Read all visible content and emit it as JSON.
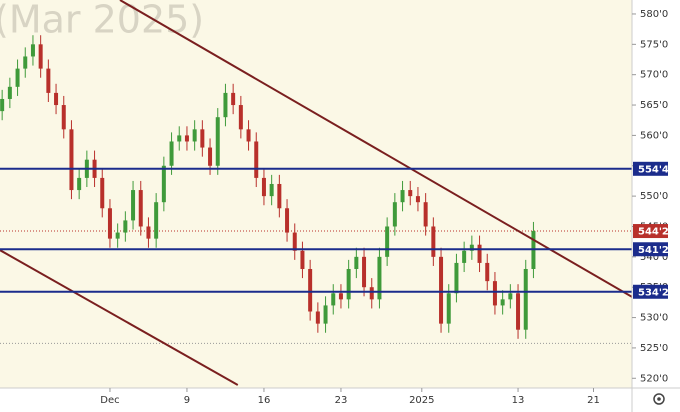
{
  "chart_data": {
    "type": "candlestick",
    "watermark": "(Mar 2025)",
    "background": "#fbf8e6",
    "up_color": "#3f9a3a",
    "down_color": "#b8302b",
    "level_color": "#1b2c8c",
    "trend_color": "#7a1f1f",
    "x": [
      -7,
      -6.5,
      -6,
      -5.5,
      -5,
      -4.5,
      -4,
      -3.5,
      -3,
      -2.5,
      -2,
      -1.5,
      -1,
      -0.5,
      0,
      0.5,
      1,
      1.5,
      2,
      2.5,
      3,
      3.5,
      4,
      4.5,
      5,
      5.5,
      6,
      6.5,
      7,
      7.5,
      8,
      8.5,
      9,
      9.5,
      10,
      10.5,
      11,
      11.5,
      12,
      12.5,
      13,
      13.5,
      14,
      14.5,
      15,
      15.5,
      16,
      16.5,
      17,
      17.5,
      18,
      18.5,
      19,
      19.5,
      20,
      20.5,
      21,
      21.5,
      22,
      22.5,
      23,
      23.5,
      24,
      24.5,
      25,
      25.5,
      26,
      26.5,
      27,
      27.5
    ],
    "open": [
      564,
      566,
      568,
      571,
      573,
      575,
      571,
      567,
      565,
      561,
      551,
      553,
      556,
      553,
      548,
      543,
      544,
      546,
      551,
      545,
      543,
      549,
      555,
      559,
      560,
      559,
      561,
      558,
      555,
      563,
      567,
      565,
      561,
      559,
      553,
      550,
      552,
      548,
      544,
      541,
      538,
      531,
      529,
      532,
      534,
      533,
      538,
      540,
      535,
      533,
      540,
      545,
      549,
      551,
      550,
      549,
      545,
      540,
      529,
      534,
      539,
      541,
      542,
      539,
      536,
      532,
      533,
      534,
      528,
      538
    ],
    "high": [
      567.5,
      569.5,
      572.5,
      574.5,
      576.5,
      576.5,
      572.5,
      568.5,
      566.5,
      562.5,
      554.5,
      557.5,
      557.5,
      554.5,
      549.5,
      545.5,
      547.5,
      552.5,
      552.5,
      546.5,
      550.5,
      556.5,
      560.5,
      561.5,
      561.5,
      562.5,
      562.5,
      559.5,
      564.5,
      568.5,
      568.5,
      566.5,
      562.5,
      560.5,
      554.5,
      553.5,
      553.5,
      549.5,
      545.5,
      542.5,
      539.5,
      532.5,
      533.5,
      535.5,
      535.5,
      539.5,
      541.5,
      541.5,
      536.5,
      541.5,
      546.5,
      550.5,
      552.5,
      552.5,
      551.5,
      550.5,
      546.5,
      541.5,
      535.5,
      540.5,
      542.5,
      543.5,
      543.5,
      540.5,
      537.5,
      534.5,
      535.5,
      535.5,
      539.5,
      545.75
    ],
    "low": [
      562.5,
      564.5,
      566.5,
      569.5,
      571.5,
      569.5,
      565.5,
      563.5,
      559.5,
      549.5,
      549.5,
      551.5,
      551.5,
      546.5,
      541.5,
      541.5,
      542.5,
      544.5,
      543.5,
      541.5,
      541.5,
      547.5,
      553.5,
      557.5,
      557.5,
      557.5,
      556.5,
      553.5,
      553.5,
      561.5,
      563.5,
      559.5,
      557.5,
      551.5,
      548.5,
      548.5,
      546.5,
      542.5,
      539.5,
      536.5,
      529.5,
      527.5,
      527.5,
      530.5,
      531.5,
      531.5,
      536.5,
      533.5,
      531.5,
      531.5,
      538.5,
      543.5,
      547.5,
      548.5,
      547.5,
      543.5,
      538.5,
      527.5,
      527.5,
      532.5,
      537.5,
      539.5,
      537.5,
      534.5,
      530.5,
      530.5,
      531.5,
      526.5,
      526.5,
      536.5
    ],
    "close": [
      566,
      568,
      571,
      573,
      575,
      571,
      567,
      565,
      561,
      551,
      553,
      556,
      553,
      548,
      543,
      544,
      546,
      551,
      545,
      543,
      549,
      555,
      559,
      560,
      559,
      561,
      558,
      555,
      563,
      567,
      565,
      561,
      559,
      553,
      550,
      552,
      548,
      544,
      541,
      538,
      531,
      529,
      532,
      534,
      533,
      538,
      540,
      535,
      533,
      540,
      545,
      549,
      551,
      550,
      549,
      545,
      540,
      529,
      534,
      539,
      541,
      542,
      539,
      536,
      532,
      533,
      534,
      528,
      538,
      544.25
    ],
    "xlim": [
      -7.14,
      33.9
    ],
    "ylim": [
      518.4,
      582.3
    ],
    "xticks": [
      {
        "value": 0,
        "label": "Dec"
      },
      {
        "value": 5,
        "label": "9"
      },
      {
        "value": 10,
        "label": "16"
      },
      {
        "value": 15,
        "label": "23"
      },
      {
        "value": 20.25,
        "label": "2025"
      },
      {
        "value": 26.5,
        "label": "13"
      },
      {
        "value": 31.4,
        "label": "21"
      }
    ],
    "yticks": [
      {
        "value": 580,
        "label": "580'0"
      },
      {
        "value": 575,
        "label": "575'0"
      },
      {
        "value": 570,
        "label": "570'0"
      },
      {
        "value": 565,
        "label": "565'0"
      },
      {
        "value": 560,
        "label": "560'0"
      },
      {
        "value": 555,
        "label": "555'0"
      },
      {
        "value": 550,
        "label": "550'0"
      },
      {
        "value": 545,
        "label": "545'0"
      },
      {
        "value": 540,
        "label": "540'0"
      },
      {
        "value": 535,
        "label": "535'0"
      },
      {
        "value": 530,
        "label": "530'0"
      },
      {
        "value": 525,
        "label": "525'0"
      },
      {
        "value": 520,
        "label": "520'0"
      }
    ],
    "levels": [
      {
        "value": 554.5,
        "label": "554'4"
      },
      {
        "value": 541.25,
        "label": "541'2"
      },
      {
        "value": 534.25,
        "label": "534'2"
      }
    ],
    "last_price": {
      "value": 544.25,
      "label": "544'2"
    },
    "dotted_level": 525.75,
    "trendlines": [
      {
        "x": [
          0.65,
          33.9
        ],
        "y": [
          582.3,
          533.4
        ]
      },
      {
        "x": [
          -7.14,
          8.3
        ],
        "y": [
          541.1,
          518.9
        ]
      }
    ]
  }
}
